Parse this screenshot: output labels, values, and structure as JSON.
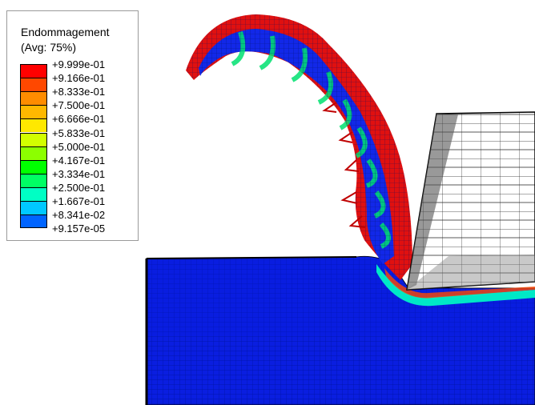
{
  "legend": {
    "title_line1": "Endommagement",
    "title_line2": "(Avg: 75%)",
    "levels": [
      {
        "label": "+9.999e-01",
        "color": "#ff0000"
      },
      {
        "label": "+9.166e-01",
        "color": "#ff4800"
      },
      {
        "label": "+8.333e-01",
        "color": "#ff8c00"
      },
      {
        "label": "+7.500e-01",
        "color": "#ffb800"
      },
      {
        "label": "+6.666e-01",
        "color": "#ffe800"
      },
      {
        "label": "+5.833e-01",
        "color": "#d2ff00"
      },
      {
        "label": "+5.000e-01",
        "color": "#8cff00"
      },
      {
        "label": "+4.167e-01",
        "color": "#00ff00"
      },
      {
        "label": "+3.334e-01",
        "color": "#00ff64"
      },
      {
        "label": "+2.500e-01",
        "color": "#00ffc4"
      },
      {
        "label": "+1.667e-01",
        "color": "#00c8ff"
      },
      {
        "label": "+8.341e-02",
        "color": "#0064ff"
      },
      {
        "label": "+9.157e-05",
        "color": "#0000ff"
      }
    ]
  },
  "colors": {
    "workpiece": "#0a1ee0",
    "mesh_line": "#001090",
    "damage_high": "#ff0000",
    "damage_mid": "#00ff64",
    "tool_fill": "#ffffff",
    "tool_mesh": "#000000"
  }
}
